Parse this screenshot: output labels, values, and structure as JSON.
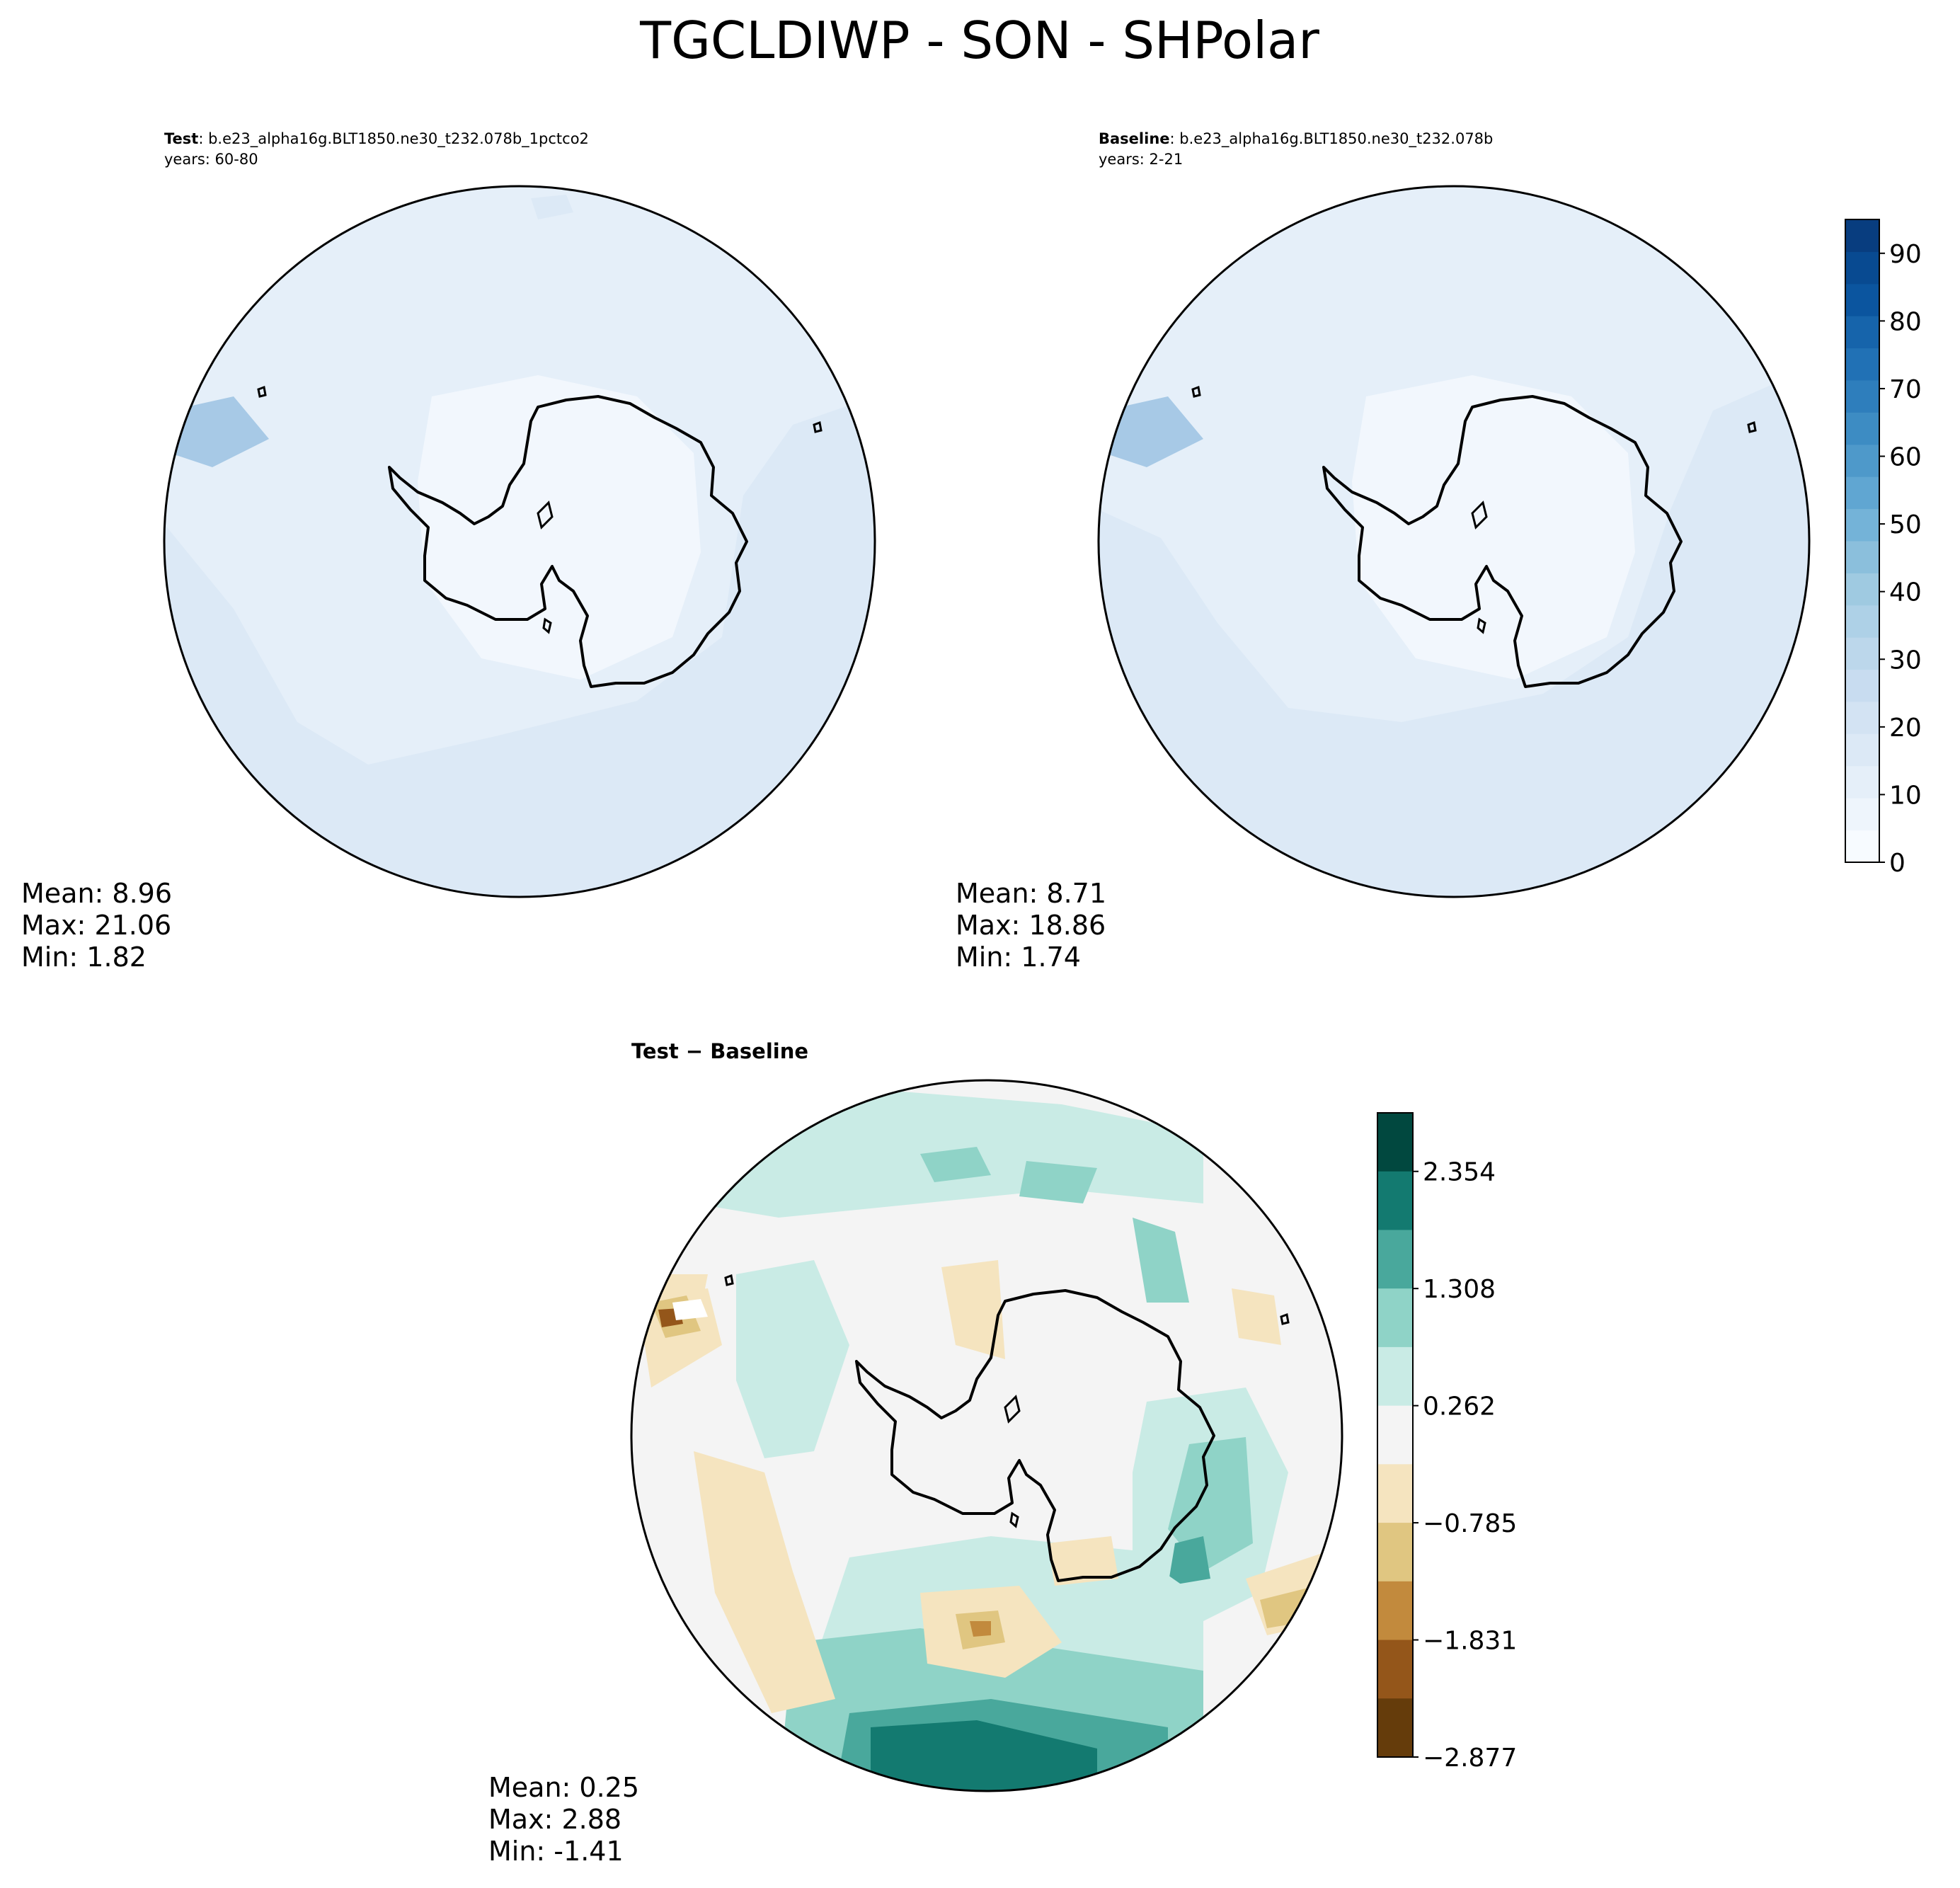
{
  "title": "TGCLDIWP - SON - SHPolar",
  "panels": {
    "test": {
      "label_bold": "Test",
      "case_name": ": b.e23_alpha16g.BLT1850.ne30_t232.078b_1pctco2",
      "years": "years: 60-80",
      "stats": {
        "mean": "Mean:  8.96",
        "max": "Max: 21.06",
        "min": "Min:  1.82"
      }
    },
    "baseline": {
      "label_bold": "Baseline",
      "case_name": ": b.e23_alpha16g.BLT1850.ne30_t232.078b",
      "years": "years: 2-21",
      "stats": {
        "mean": "Mean:  8.71",
        "max": "Max: 18.86",
        "min": "Min:  1.74"
      }
    },
    "diff": {
      "label": "Test − Baseline",
      "stats": {
        "mean": "Mean:  0.25",
        "max": "Max:  2.88",
        "min": "Min: -1.41"
      }
    }
  },
  "colorbar_main": {
    "ticks": [
      "0",
      "10",
      "20",
      "30",
      "40",
      "50",
      "60",
      "70",
      "80",
      "90"
    ],
    "range": [
      0,
      95
    ],
    "colors": [
      "#f7fbff",
      "#eef5fc",
      "#e5eff9",
      "#dce9f6",
      "#d3e3f3",
      "#c8dcf0",
      "#bcd7eb",
      "#aed1e7",
      "#9fcae1",
      "#8bbfdc",
      "#74b3d8",
      "#60a6d2",
      "#4e99ca",
      "#3d8cc3",
      "#2e7ebc",
      "#2171b5",
      "#1664ab",
      "#0b559f",
      "#084a91",
      "#083d7f"
    ]
  },
  "colorbar_diff": {
    "ticks": [
      "2.354",
      "1.308",
      "0.262",
      "−0.785",
      "−1.831",
      "−2.877"
    ],
    "colors_top_to_bottom": [
      "#01483f",
      "#137a70",
      "#49a89c",
      "#8fd3c7",
      "#c9ebe5",
      "#f4f4f4",
      "#f5e4bf",
      "#e0c681",
      "#c28a3d",
      "#94561a",
      "#653c0b"
    ]
  }
}
